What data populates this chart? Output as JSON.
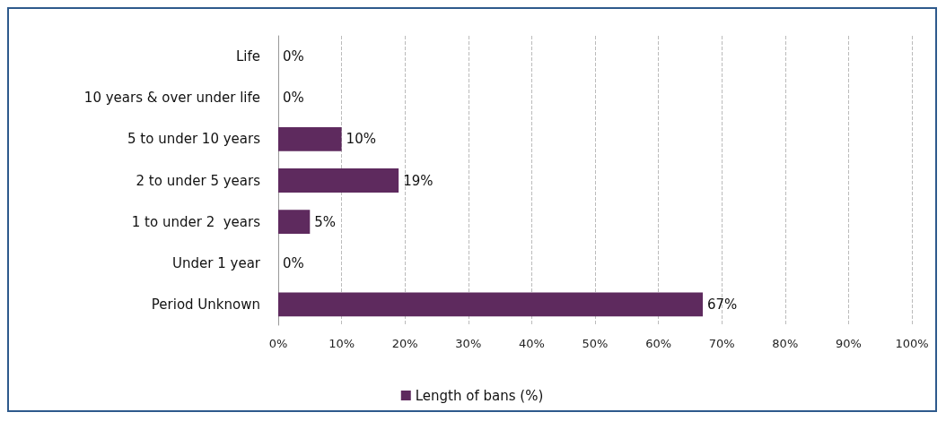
{
  "chart_data": {
    "type": "bar",
    "orientation": "horizontal",
    "categories": [
      "Life",
      "10 years & over under life",
      "5 to under 10 years",
      "2 to under 5 years",
      "1 to under 2  years",
      "Under 1 year",
      "Period Unknown"
    ],
    "series": [
      {
        "name": "Length of bans (%)",
        "color": "#5e2a5e",
        "values": [
          0,
          0,
          10,
          19,
          5,
          0,
          67
        ],
        "value_labels": [
          "0%",
          "0%",
          "10%",
          "19%",
          "5%",
          "0%",
          "67%"
        ]
      }
    ],
    "xlim": [
      0,
      100
    ],
    "xticks": [
      {
        "value": 0,
        "label": "0%"
      },
      {
        "value": 10,
        "label": "10%"
      },
      {
        "value": 20,
        "label": "20%"
      },
      {
        "value": 30,
        "label": "30%"
      },
      {
        "value": 40,
        "label": "40%"
      },
      {
        "value": 50,
        "label": "50%"
      },
      {
        "value": 60,
        "label": "60%"
      },
      {
        "value": 70,
        "label": "70%"
      },
      {
        "value": 80,
        "label": "80%"
      },
      {
        "value": 90,
        "label": "90%"
      },
      {
        "value": 100,
        "label": "100%"
      }
    ],
    "grid": "x",
    "legend": "bottom"
  }
}
